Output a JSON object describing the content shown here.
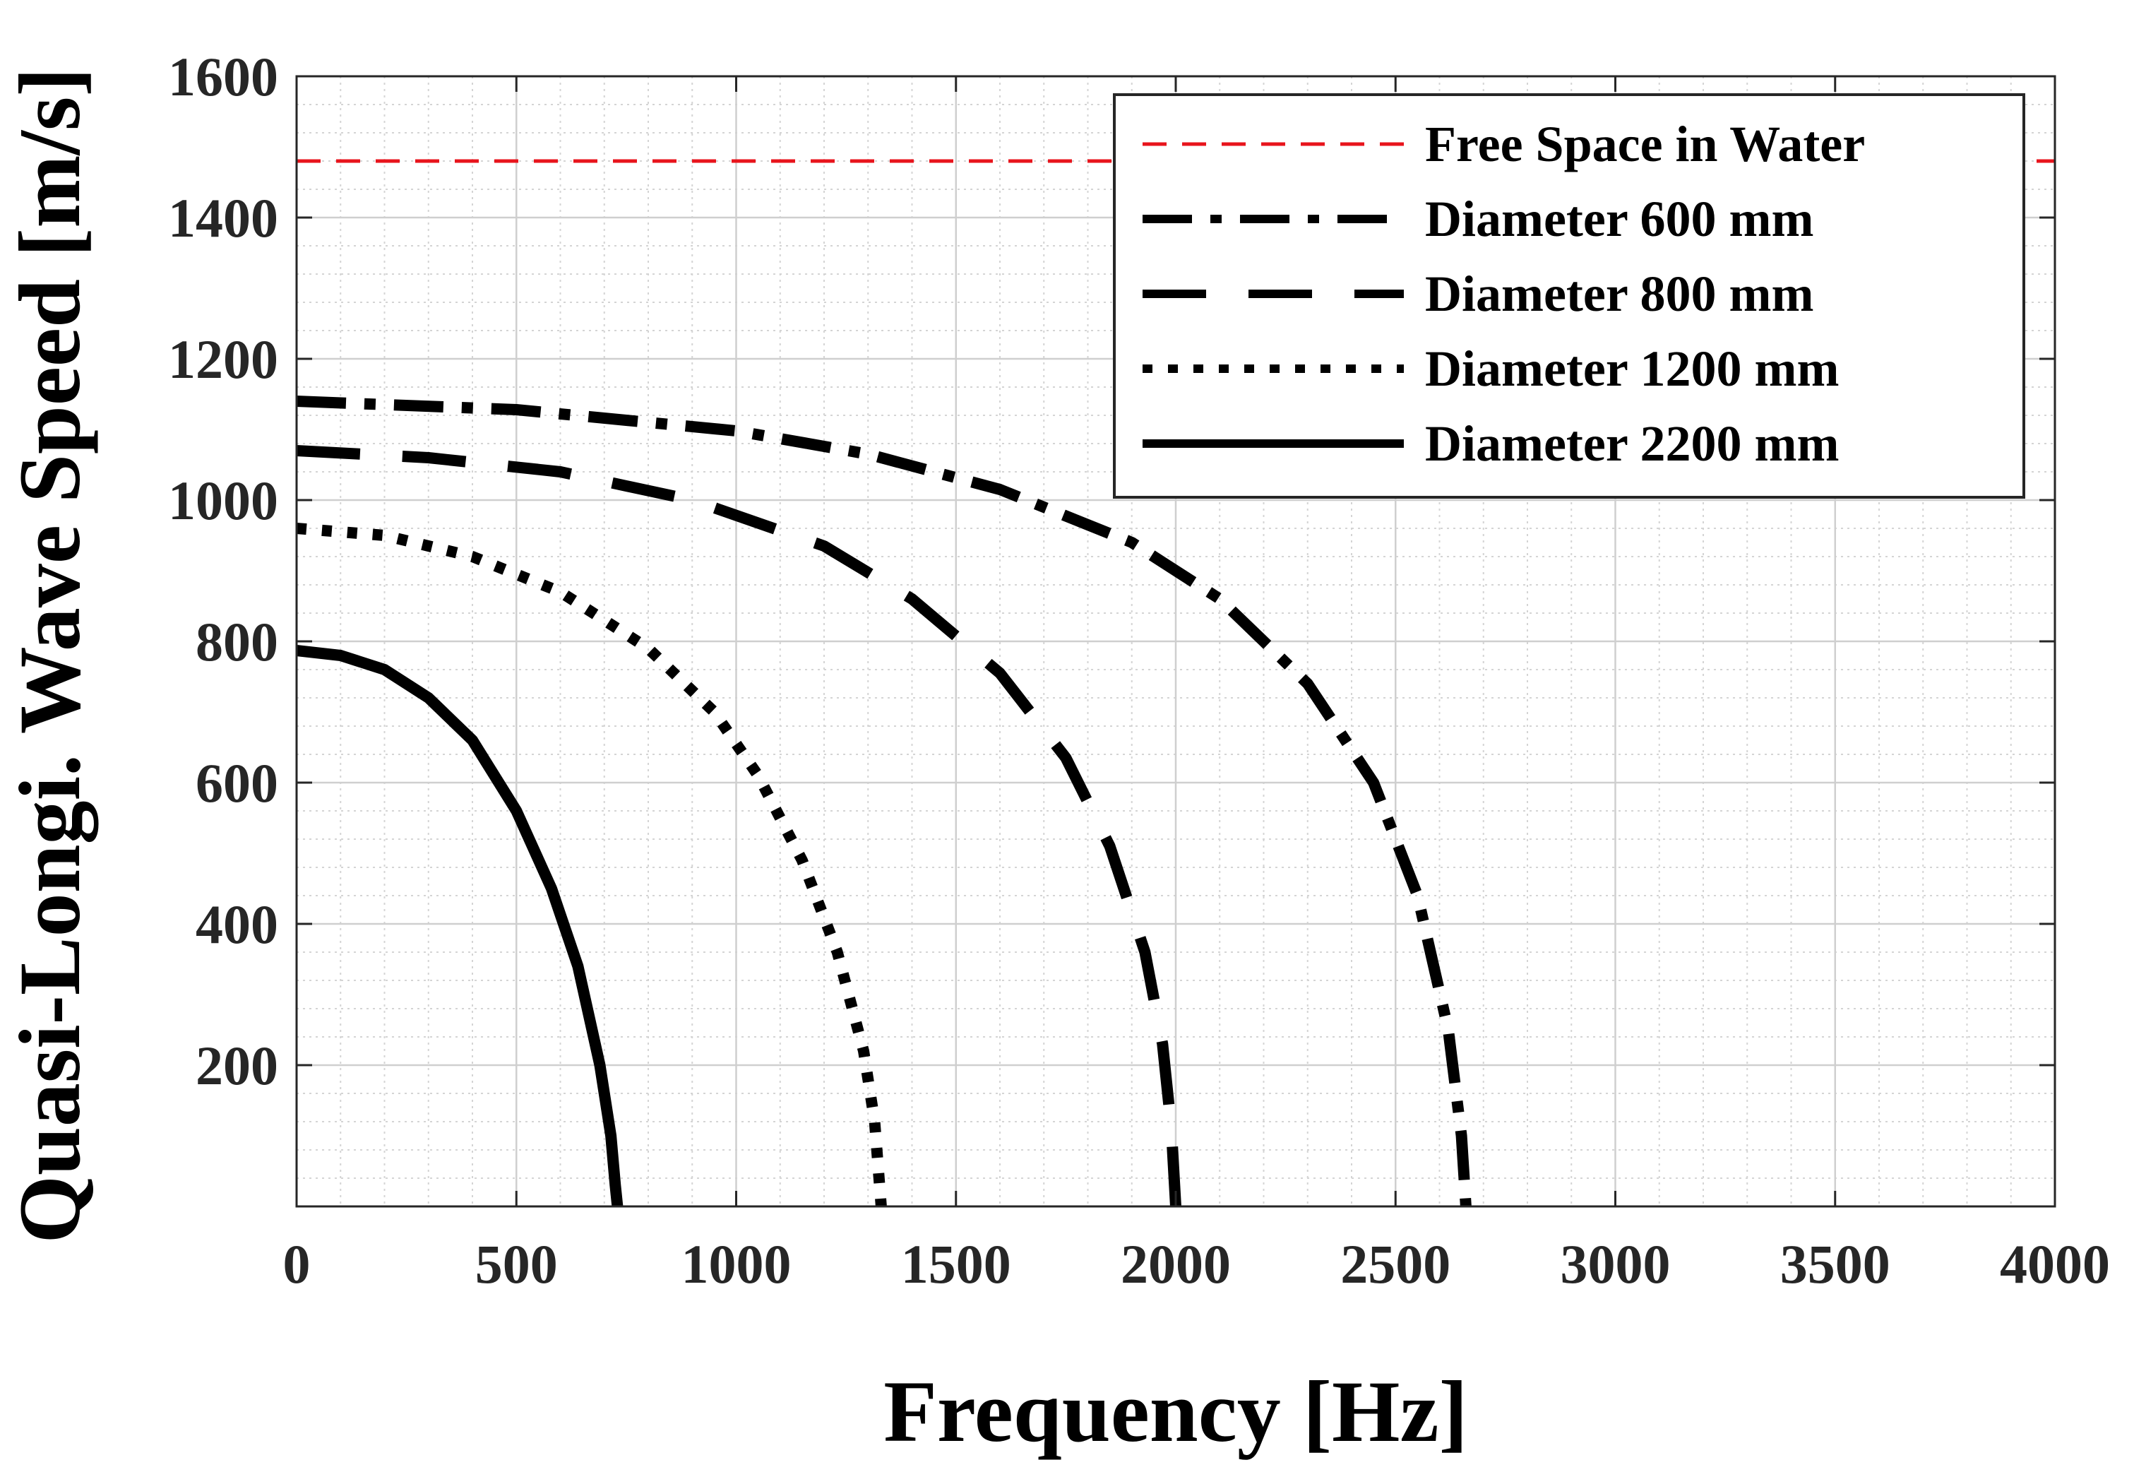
{
  "chart_data": {
    "type": "line",
    "title": "",
    "xlabel": "Frequency [Hz]",
    "ylabel": "Quasi-Longi. Wave Speed [m/s]",
    "xlim": [
      0,
      4000
    ],
    "ylim": [
      0,
      1600
    ],
    "xticks": [
      0,
      500,
      1000,
      1500,
      2000,
      2500,
      3000,
      3500,
      4000
    ],
    "yticks": [
      200,
      400,
      600,
      800,
      1000,
      1200,
      1400,
      1600
    ],
    "xtick_labels": [
      "0",
      "500",
      "1000",
      "1500",
      "2000",
      "2500",
      "3000",
      "3500",
      "4000"
    ],
    "ytick_labels": [
      "200",
      "400",
      "600",
      "800",
      "1000",
      "1200",
      "1400",
      "1600"
    ],
    "grid": true,
    "minor_grid": true,
    "legend_position": "top-right",
    "series": [
      {
        "name": "Free Space in Water",
        "color": "#e8141c",
        "style": "thin-dashed",
        "x": [
          0,
          4000
        ],
        "y": [
          1480,
          1480
        ]
      },
      {
        "name": "Diameter 600 mm",
        "color": "#000000",
        "style": "dash-dot",
        "x": [
          0,
          500,
          1000,
          1300,
          1600,
          1900,
          2100,
          2300,
          2450,
          2550,
          2620,
          2650,
          2660
        ],
        "y": [
          1140,
          1128,
          1098,
          1065,
          1015,
          940,
          860,
          740,
          600,
          440,
          250,
          100,
          0
        ]
      },
      {
        "name": "Diameter 800 mm",
        "color": "#000000",
        "style": "long-dash",
        "x": [
          0,
          300,
          600,
          900,
          1200,
          1400,
          1600,
          1750,
          1850,
          1930,
          1970,
          1990,
          2000
        ],
        "y": [
          1070,
          1060,
          1040,
          1000,
          935,
          860,
          755,
          635,
          510,
          360,
          230,
          110,
          0
        ]
      },
      {
        "name": "Diameter 1200 mm",
        "color": "#000000",
        "style": "dotted",
        "x": [
          0,
          200,
          400,
          600,
          800,
          950,
          1050,
          1150,
          1230,
          1290,
          1315,
          1325,
          1330
        ],
        "y": [
          960,
          950,
          920,
          870,
          790,
          700,
          610,
          490,
          360,
          220,
          120,
          40,
          0
        ]
      },
      {
        "name": "Diameter 2200 mm",
        "color": "#000000",
        "style": "solid",
        "x": [
          0,
          100,
          200,
          300,
          400,
          500,
          580,
          640,
          690,
          715,
          725,
          730
        ],
        "y": [
          787,
          780,
          760,
          720,
          660,
          560,
          450,
          340,
          200,
          100,
          30,
          0
        ]
      }
    ]
  }
}
